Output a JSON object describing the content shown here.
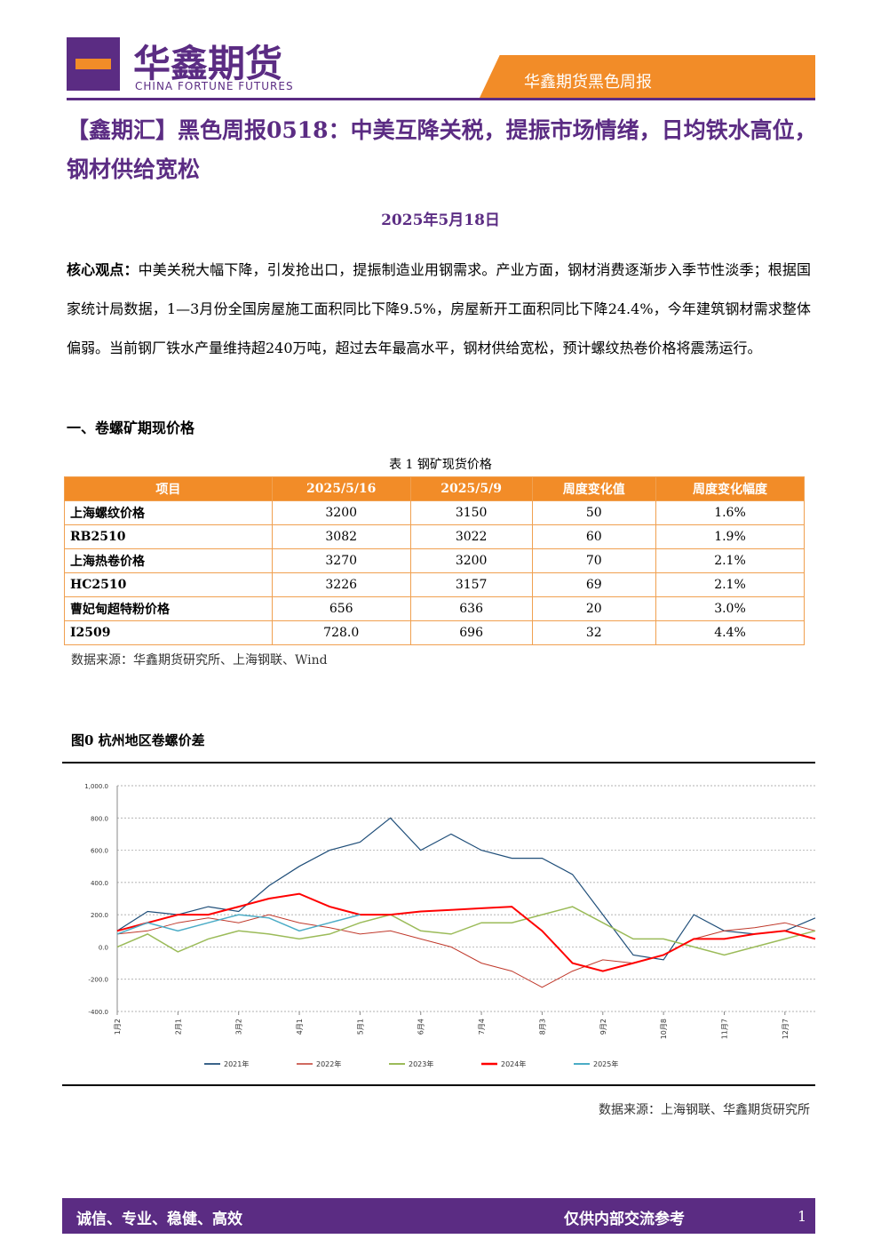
{
  "header": {
    "brand": "华鑫期货",
    "brand_en": "CHINA FORTUNE FUTURES",
    "report_name": "华鑫期货黑色周报"
  },
  "title": "【鑫期汇】黑色周报0518：中美互降关税，提振市场情绪，日均铁水高位，钢材供给宽松",
  "date": "2025年5月18日",
  "summary": {
    "label": "核心观点：",
    "text": "中美关税大幅下降，引发抢出口，提振制造业用钢需求。产业方面，钢材消费逐渐步入季节性淡季；根据国家统计局数据，1—3月份全国房屋施工面积同比下降9.5%，房屋新开工面积同比下降24.4%，今年建筑钢材需求整体偏弱。当前钢厂铁水产量维持超240万吨，超过去年最高水平，钢材供给宽松，预计螺纹热卷价格将震荡运行。"
  },
  "section": "一、卷螺矿期现价格",
  "table": {
    "caption": "表 1 钢矿现货价格",
    "columns": [
      "项目",
      "2025/5/16",
      "2025/5/9",
      "周度变化值",
      "周度变化幅度"
    ],
    "rows": [
      [
        "上海螺纹价格",
        "3200",
        "3150",
        "50",
        "1.6%"
      ],
      [
        "RB2510",
        "3082",
        "3022",
        "60",
        "1.9%"
      ],
      [
        "上海热卷价格",
        "3270",
        "3200",
        "70",
        "2.1%"
      ],
      [
        "HC2510",
        "3226",
        "3157",
        "69",
        "2.1%"
      ],
      [
        "曹妃甸超特粉价格",
        "656",
        "636",
        "20",
        "3.0%"
      ],
      [
        "I2509",
        "728.0",
        "696",
        "32",
        "4.4%"
      ]
    ],
    "source": "数据来源：华鑫期货研究所、上海钢联、Wind"
  },
  "figure": {
    "caption": "图0 杭州地区卷螺价差",
    "source": "数据来源：上海钢联、华鑫期货研究所"
  },
  "chart_data": {
    "type": "line",
    "categories": [
      "1月2",
      null,
      "2月1",
      null,
      "3月2",
      null,
      "4月1",
      null,
      "5月1",
      null,
      "6月4",
      null,
      "7月4",
      null,
      "8月3",
      null,
      "9月2",
      null,
      "10月8",
      null,
      "11月7",
      null,
      "12月7",
      null
    ],
    "ylim": [
      -400,
      1000
    ],
    "yticks": [
      {
        "value": -400,
        "label": "-400.0"
      },
      {
        "value": -200,
        "label": "-200.0"
      },
      {
        "value": 0,
        "label": "0.0"
      },
      {
        "value": 200,
        "label": "200.0"
      },
      {
        "value": 400,
        "label": "400.0"
      },
      {
        "value": 600,
        "label": "600.0"
      },
      {
        "value": 800,
        "label": "800.0"
      },
      {
        "value": 1000,
        "label": "1,000.0"
      }
    ],
    "grid": true,
    "legend": "bottom",
    "series": [
      {
        "name": "2021年",
        "color": "#1f4e79",
        "width": 1.2,
        "values": [
          100,
          220,
          200,
          250,
          220,
          380,
          500,
          600,
          650,
          800,
          600,
          700,
          600,
          550,
          550,
          450,
          200,
          -50,
          -80,
          200,
          100,
          80,
          100,
          180
        ]
      },
      {
        "name": "2022年",
        "color": "#c0392b",
        "width": 1,
        "values": [
          80,
          100,
          150,
          180,
          150,
          200,
          150,
          120,
          80,
          100,
          50,
          0,
          -100,
          -150,
          -250,
          -150,
          -80,
          -100,
          -50,
          50,
          100,
          120,
          150,
          100
        ]
      },
      {
        "name": "2023年",
        "color": "#9bbb59",
        "width": 1.5,
        "values": [
          0,
          80,
          -30,
          50,
          100,
          80,
          50,
          80,
          150,
          200,
          100,
          80,
          150,
          150,
          200,
          250,
          150,
          50,
          50,
          0,
          -50,
          0,
          50,
          100
        ]
      },
      {
        "name": "2024年",
        "color": "#ff0000",
        "width": 2,
        "values": [
          100,
          150,
          200,
          200,
          250,
          300,
          330,
          250,
          200,
          200,
          220,
          230,
          240,
          250,
          100,
          -100,
          -150,
          -100,
          -50,
          50,
          50,
          80,
          100,
          50
        ]
      },
      {
        "name": "2025年",
        "color": "#4bacc6",
        "width": 1.5,
        "values": [
          80,
          150,
          100,
          150,
          200,
          180,
          100,
          150,
          200,
          null,
          null,
          null,
          null,
          null,
          null,
          null,
          null,
          null,
          null,
          null,
          null,
          null,
          null,
          null
        ]
      }
    ]
  },
  "footer": {
    "motto": "诚信、专业、稳健、高效",
    "note": "仅供内部交流参考",
    "page": "1"
  }
}
